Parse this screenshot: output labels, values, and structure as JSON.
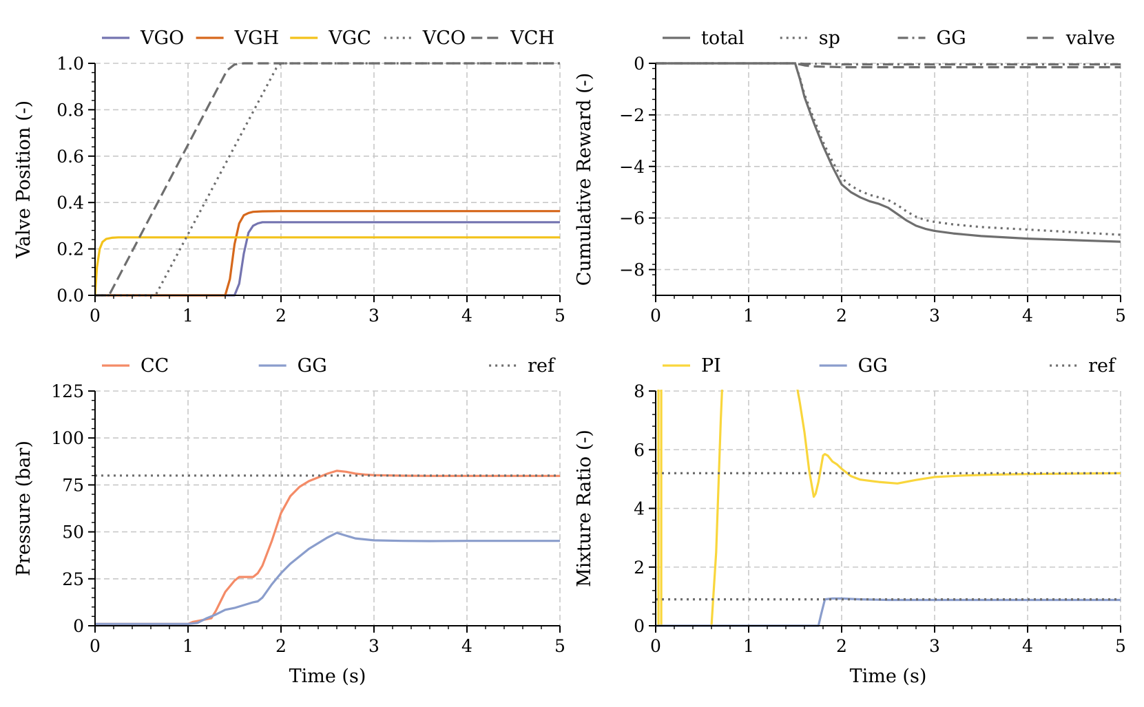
{
  "figure": {
    "colors": {
      "VGO": "#7474b0",
      "VGH": "#d6681c",
      "VGC": "#f3c21a",
      "gray": "#6e6e6e",
      "CC": "#f48b67",
      "GG": "#8a9dcc",
      "PI": "#f9d63c",
      "grid": "#c8c8c8"
    }
  },
  "chart_data": [
    {
      "type": "line",
      "title": "",
      "xlabel": "",
      "ylabel": "Valve Position (-)",
      "xlim": [
        0,
        5
      ],
      "ylim": [
        0,
        1.0
      ],
      "xticks": [
        0,
        1,
        2,
        3,
        4,
        5
      ],
      "yticks": [
        0.0,
        0.2,
        0.4,
        0.6,
        0.8,
        1.0
      ],
      "xtick_labels": [
        "0",
        "1",
        "2",
        "3",
        "4",
        "5"
      ],
      "ytick_labels": [
        "0.0",
        "0.2",
        "0.4",
        "0.6",
        "0.8",
        "1.0"
      ],
      "grid": true,
      "legend_position": "top",
      "series": [
        {
          "name": "VGO",
          "style": "solid",
          "color_key": "VGO",
          "x": [
            0,
            1.5,
            1.55,
            1.6,
            1.65,
            1.7,
            1.75,
            1.8,
            2.0,
            5.0
          ],
          "y": [
            0,
            0,
            0.05,
            0.18,
            0.27,
            0.3,
            0.31,
            0.315,
            0.315,
            0.315
          ]
        },
        {
          "name": "VGH",
          "style": "solid",
          "color_key": "VGH",
          "x": [
            0,
            1.4,
            1.45,
            1.5,
            1.55,
            1.6,
            1.65,
            1.7,
            1.8,
            2.0,
            5.0
          ],
          "y": [
            0,
            0,
            0.07,
            0.22,
            0.31,
            0.345,
            0.355,
            0.36,
            0.362,
            0.363,
            0.363
          ]
        },
        {
          "name": "VGC",
          "style": "solid",
          "color_key": "VGC",
          "x": [
            0,
            0.02,
            0.05,
            0.08,
            0.12,
            0.18,
            0.25,
            0.35,
            5.0
          ],
          "y": [
            0,
            0.12,
            0.2,
            0.23,
            0.243,
            0.248,
            0.25,
            0.25,
            0.25
          ]
        },
        {
          "name": "VCO",
          "style": "dotted",
          "color_key": "gray",
          "x": [
            0,
            0.65,
            1.95,
            2.0,
            5.0
          ],
          "y": [
            0,
            0,
            0.98,
            1.0,
            1.0
          ]
        },
        {
          "name": "VCH",
          "style": "dashed",
          "color_key": "gray",
          "x": [
            0,
            0.15,
            1.42,
            1.5,
            1.6,
            5.0
          ],
          "y": [
            0,
            0,
            0.97,
            0.995,
            1.0,
            1.0
          ]
        }
      ]
    },
    {
      "type": "line",
      "title": "",
      "xlabel": "",
      "ylabel": "Cumulative Reward (-)",
      "xlim": [
        0,
        5
      ],
      "ylim": [
        -9,
        0
      ],
      "xticks": [
        0,
        1,
        2,
        3,
        4,
        5
      ],
      "yticks": [
        0,
        -2,
        -4,
        -6,
        -8
      ],
      "xtick_labels": [
        "0",
        "1",
        "2",
        "3",
        "4",
        "5"
      ],
      "ytick_labels": [
        "0",
        "−2",
        "−4",
        "−6",
        "−8"
      ],
      "grid": true,
      "legend_position": "top",
      "series": [
        {
          "name": "total",
          "style": "solid",
          "color_key": "gray",
          "x": [
            0,
            1.5,
            1.55,
            1.6,
            1.7,
            1.8,
            1.9,
            2.0,
            2.1,
            2.2,
            2.3,
            2.4,
            2.5,
            2.6,
            2.7,
            2.8,
            2.9,
            3.0,
            3.2,
            3.5,
            4.0,
            4.5,
            5.0
          ],
          "y": [
            0,
            0,
            -0.6,
            -1.3,
            -2.3,
            -3.2,
            -4.0,
            -4.7,
            -5.0,
            -5.2,
            -5.35,
            -5.45,
            -5.6,
            -5.85,
            -6.1,
            -6.3,
            -6.42,
            -6.5,
            -6.6,
            -6.7,
            -6.8,
            -6.86,
            -6.92
          ]
        },
        {
          "name": "sp",
          "style": "dotted",
          "color_key": "gray",
          "x": [
            0,
            1.5,
            1.55,
            1.6,
            1.7,
            1.8,
            1.9,
            2.0,
            2.1,
            2.2,
            2.3,
            2.4,
            2.5,
            2.6,
            2.7,
            2.8,
            2.9,
            3.0,
            3.2,
            3.5,
            4.0,
            4.5,
            5.0
          ],
          "y": [
            0,
            0,
            -0.55,
            -1.2,
            -2.15,
            -3.05,
            -3.8,
            -4.45,
            -4.75,
            -4.95,
            -5.1,
            -5.2,
            -5.3,
            -5.5,
            -5.75,
            -5.95,
            -6.08,
            -6.15,
            -6.25,
            -6.35,
            -6.45,
            -6.55,
            -6.65
          ]
        },
        {
          "name": "GG",
          "style": "dashdot",
          "color_key": "gray",
          "x": [
            0,
            1.5,
            1.6,
            1.7,
            1.8,
            1.9,
            2.0,
            5.0
          ],
          "y": [
            0,
            0,
            -0.02,
            -0.02,
            -0.01,
            -0.03,
            -0.04,
            -0.04
          ]
        },
        {
          "name": "valve",
          "style": "dashed",
          "color_key": "gray",
          "x": [
            0,
            1.5,
            1.6,
            1.7,
            1.9,
            2.0,
            2.5,
            3.0,
            5.0
          ],
          "y": [
            0,
            0,
            -0.08,
            -0.12,
            -0.14,
            -0.15,
            -0.15,
            -0.15,
            -0.15
          ]
        }
      ]
    },
    {
      "type": "line",
      "title": "",
      "xlabel": "Time (s)",
      "ylabel": "Pressure (bar)",
      "xlim": [
        0,
        5
      ],
      "ylim": [
        0,
        125
      ],
      "xticks": [
        0,
        1,
        2,
        3,
        4,
        5
      ],
      "yticks": [
        0,
        25,
        50,
        75,
        100,
        125
      ],
      "xtick_labels": [
        "0",
        "1",
        "2",
        "3",
        "4",
        "5"
      ],
      "ytick_labels": [
        "0",
        "25",
        "50",
        "75",
        "100",
        "125"
      ],
      "grid": true,
      "legend_position": "top",
      "series": [
        {
          "name": "CC",
          "style": "solid",
          "color_key": "CC",
          "x": [
            0,
            1.0,
            1.05,
            1.15,
            1.25,
            1.3,
            1.35,
            1.4,
            1.5,
            1.55,
            1.6,
            1.7,
            1.75,
            1.8,
            1.9,
            2.0,
            2.1,
            2.2,
            2.3,
            2.4,
            2.5,
            2.6,
            2.7,
            2.8,
            2.9,
            3.0,
            3.3,
            3.6,
            4.0,
            5.0
          ],
          "y": [
            1,
            1,
            2,
            3,
            4,
            8,
            13,
            18,
            24,
            26,
            26,
            26,
            28,
            32,
            45,
            60,
            69,
            74,
            77,
            79,
            81,
            82.5,
            82,
            81,
            80.5,
            80.2,
            79.9,
            79.8,
            79.8,
            79.8
          ]
        },
        {
          "name": "GG",
          "style": "solid",
          "color_key": "GG",
          "x": [
            0,
            1.0,
            1.1,
            1.2,
            1.3,
            1.4,
            1.5,
            1.6,
            1.7,
            1.75,
            1.8,
            1.9,
            2.0,
            2.1,
            2.2,
            2.3,
            2.4,
            2.5,
            2.6,
            2.7,
            2.8,
            3.0,
            3.3,
            3.6,
            4.0,
            5.0
          ],
          "y": [
            1,
            1,
            1.5,
            4,
            6,
            8.5,
            9.5,
            11,
            12.5,
            13,
            15,
            22,
            28,
            33,
            37,
            41,
            44,
            47,
            49.5,
            48,
            46.5,
            45.5,
            45.2,
            45.1,
            45.2,
            45.2
          ]
        },
        {
          "name": "ref",
          "style": "dotted",
          "color_key": "gray",
          "x": [
            0,
            5
          ],
          "y": [
            80,
            80
          ]
        }
      ]
    },
    {
      "type": "line",
      "title": "",
      "xlabel": "Time (s)",
      "ylabel": "Mixture Ratio (-)",
      "xlim": [
        0,
        5
      ],
      "ylim": [
        0,
        8
      ],
      "xticks": [
        0,
        1,
        2,
        3,
        4,
        5
      ],
      "yticks": [
        0,
        2,
        4,
        6,
        8
      ],
      "xtick_labels": [
        "0",
        "1",
        "2",
        "3",
        "4",
        "5"
      ],
      "ytick_labels": [
        "0",
        "2",
        "4",
        "6",
        "8"
      ],
      "grid": true,
      "legend_position": "top",
      "series": [
        {
          "name": "PI",
          "style": "solid",
          "color_key": "PI",
          "segments": [
            {
              "x": [
                0.03,
                0.03
              ],
              "y": [
                8.5,
                0
              ]
            },
            {
              "x": [
                0.06,
                0.06
              ],
              "y": [
                0,
                8.5
              ]
            },
            {
              "x": [
                0.6,
                0.65,
                0.7,
                0.72
              ],
              "y": [
                0,
                2.5,
                7.0,
                8.5
              ]
            },
            {
              "x": [
                1.5,
                1.55,
                1.6,
                1.65,
                1.7,
                1.72,
                1.75,
                1.8,
                1.82,
                1.85,
                1.9,
                1.95,
                2.0,
                2.1,
                2.2,
                2.4,
                2.6,
                2.8,
                3.0,
                3.3,
                3.6,
                4.0,
                5.0
              ],
              "y": [
                8.5,
                7.6,
                6.6,
                5.3,
                4.4,
                4.5,
                4.9,
                5.8,
                5.85,
                5.8,
                5.6,
                5.5,
                5.35,
                5.1,
                4.98,
                4.9,
                4.85,
                4.97,
                5.07,
                5.12,
                5.15,
                5.17,
                5.2
              ]
            }
          ]
        },
        {
          "name": "GG",
          "style": "solid",
          "color_key": "GG",
          "x": [
            0,
            1.75,
            1.78,
            1.82,
            1.9,
            2.0,
            2.2,
            2.5,
            3.0,
            5.0
          ],
          "y": [
            0,
            0,
            0.4,
            0.9,
            0.93,
            0.93,
            0.9,
            0.88,
            0.88,
            0.88
          ]
        },
        {
          "name": "ref",
          "style": "dotted",
          "color_key": "gray",
          "x": [
            0,
            5
          ],
          "y": [
            5.2,
            5.2
          ]
        },
        {
          "name": "ref",
          "style": "dotted",
          "color_key": "gray",
          "legend": false,
          "x": [
            0,
            5
          ],
          "y": [
            0.9,
            0.9
          ]
        }
      ]
    }
  ]
}
